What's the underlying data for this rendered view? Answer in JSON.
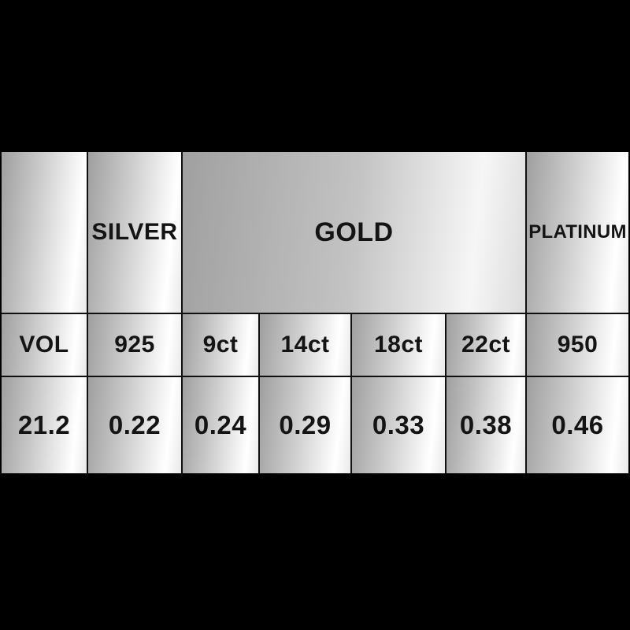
{
  "chart_data": {
    "type": "table",
    "header_groups": {
      "corner": "",
      "silver": "SILVER",
      "gold": "GOLD",
      "platinum": "PLATINUM"
    },
    "gold_span_columns": 4,
    "subheaders": [
      "VOL",
      "925",
      "9ct",
      "14ct",
      "18ct",
      "22ct",
      "950"
    ],
    "rows": [
      [
        "21.2",
        "0.22",
        "0.24",
        "0.29",
        "0.33",
        "0.38",
        "0.46"
      ]
    ]
  },
  "colors": {
    "background": "#000000",
    "cell_gradient_dark": "#9f9f9f",
    "cell_gradient_light": "#ffffff",
    "grid_line": "#101010",
    "text": "#141414"
  }
}
